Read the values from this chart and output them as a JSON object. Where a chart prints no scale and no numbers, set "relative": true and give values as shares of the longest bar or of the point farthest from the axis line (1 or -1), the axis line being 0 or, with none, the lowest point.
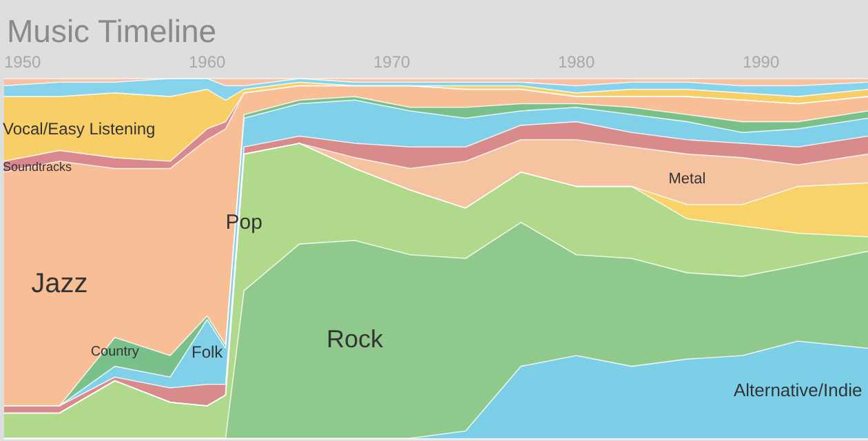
{
  "chart_data": {
    "type": "area",
    "title": "Music Timeline",
    "stacked": true,
    "relative": true,
    "marker": "none",
    "x": [
      1949,
      1952,
      1955,
      1958,
      1960,
      1961,
      1962,
      1965,
      1968,
      1971,
      1974,
      1977,
      1980,
      1983,
      1986,
      1989,
      1992,
      1995.8
    ],
    "xlim": [
      1949,
      1995.8
    ],
    "xticks": [
      1950,
      1960,
      1970,
      1980,
      1990
    ],
    "series": [
      {
        "name": "Alternative/Indie",
        "color": "#7dcfe8",
        "values": [
          0,
          0,
          0,
          0,
          0,
          0,
          0,
          0,
          0,
          0,
          0.02,
          0.2,
          0.23,
          0.2,
          0.22,
          0.23,
          0.27,
          0.25
        ]
      },
      {
        "name": "Rock",
        "color": "#8fc98b",
        "values": [
          0,
          0,
          0,
          0,
          0,
          0,
          0.41,
          0.54,
          0.55,
          0.51,
          0.48,
          0.4,
          0.28,
          0.3,
          0.24,
          0.22,
          0.21,
          0.27
        ]
      },
      {
        "name": "Pop",
        "color": "#b0d98c",
        "values": [
          0.07,
          0.07,
          0.16,
          0.1,
          0.09,
          0.12,
          0.38,
          0.28,
          0.2,
          0.18,
          0.14,
          0.14,
          0.19,
          0.2,
          0.15,
          0.14,
          0.09,
          0.04
        ]
      },
      {
        "color": "#f9d36a",
        "values": [
          0,
          0,
          0,
          0,
          0,
          0,
          0,
          0,
          0,
          0,
          0,
          0,
          0,
          0,
          0.04,
          0.06,
          0.13,
          0.15
        ]
      },
      {
        "name": "Metal",
        "color": "#f6c3a0",
        "values": [
          0,
          0,
          0,
          0,
          0,
          0,
          0,
          0,
          0.03,
          0.06,
          0.13,
          0.09,
          0.13,
          0.11,
          0.14,
          0.13,
          0.06,
          0.08
        ]
      },
      {
        "color": "#d98a8a",
        "values": [
          0.02,
          0.02,
          0.01,
          0.04,
          0.06,
          0.03,
          0.02,
          0.02,
          0.04,
          0.06,
          0.04,
          0.04,
          0.05,
          0.04,
          0.04,
          0.04,
          0.05,
          0.05
        ]
      },
      {
        "name": "Folk",
        "color": "#80d0ea",
        "values": [
          0,
          0,
          0.03,
          0.03,
          0.18,
          0.1,
          0.08,
          0.09,
          0.12,
          0.1,
          0.08,
          0.04,
          0.04,
          0.05,
          0.05,
          0.03,
          0.05,
          0.05
        ]
      },
      {
        "name": "Country",
        "color": "#79c08a",
        "values": [
          0,
          0,
          0.08,
          0.06,
          0.01,
          0.01,
          0.01,
          0.01,
          0.01,
          0.01,
          0.03,
          0.02,
          0.01,
          0.02,
          0.02,
          0.03,
          0.02,
          0.02
        ]
      },
      {
        "name": "Jazz",
        "color": "#f8be95",
        "values": [
          0.65,
          0.68,
          0.47,
          0.52,
          0.49,
          0.6,
          0.06,
          0.04,
          0.03,
          0.06,
          0.05,
          0.04,
          0.02,
          0.03,
          0.05,
          0.06,
          0.05,
          0.04
        ]
      },
      {
        "name": "Soundtracks",
        "color": "#d9888e",
        "values": [
          0.03,
          0.03,
          0.03,
          0.02,
          0.03,
          0.02,
          0,
          0,
          0,
          0,
          0,
          0,
          0,
          0,
          0,
          0,
          0,
          0
        ]
      },
      {
        "name": "Vocal/Easy Listening",
        "color": "#f8cf67",
        "values": [
          0.18,
          0.15,
          0.18,
          0.18,
          0.11,
          0.06,
          0.01,
          0.01,
          0,
          0,
          0.01,
          0.01,
          0.01,
          0.02,
          0.02,
          0.02,
          0.02,
          0.02
        ]
      },
      {
        "color": "#86d3ec",
        "values": [
          0.03,
          0.04,
          0.03,
          0.05,
          0.03,
          0.04,
          0.01,
          0.01,
          0.01,
          0.01,
          0.01,
          0.01,
          0.02,
          0.02,
          0.02,
          0.02,
          0.03,
          0.02
        ]
      },
      {
        "color": "#f6c1a5",
        "values": [
          0.02,
          0.01,
          0.01,
          0,
          0,
          0.02,
          0.02,
          0,
          0.01,
          0.01,
          0.01,
          0.01,
          0.02,
          0.01,
          0.01,
          0.02,
          0.02,
          0.01
        ]
      }
    ]
  }
}
